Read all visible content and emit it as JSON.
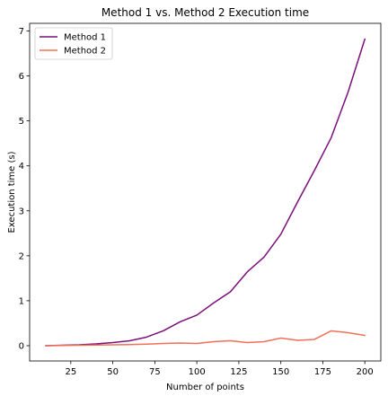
{
  "chart_data": {
    "type": "line",
    "title": "Method 1 vs. Method 2 Execution time",
    "xlabel": "Number of points",
    "ylabel": "Execution time (s)",
    "xlim": [
      0.5,
      209.5
    ],
    "ylim": [
      -0.34,
      7.17
    ],
    "xticks": [
      25,
      50,
      75,
      100,
      125,
      150,
      175,
      200
    ],
    "yticks": [
      0,
      1,
      2,
      3,
      4,
      5,
      6,
      7
    ],
    "grid": false,
    "legend_position": "top-left",
    "x": [
      10,
      20,
      30,
      40,
      50,
      60,
      70,
      80,
      90,
      100,
      110,
      120,
      130,
      140,
      150,
      160,
      170,
      180,
      190,
      200
    ],
    "series": [
      {
        "name": "Method 1",
        "color": "#7b0f7b",
        "values": [
          0.0,
          0.01,
          0.02,
          0.04,
          0.07,
          0.11,
          0.19,
          0.33,
          0.53,
          0.68,
          0.95,
          1.2,
          1.64,
          1.97,
          2.48,
          3.2,
          3.9,
          4.63,
          5.64,
          6.82
        ]
      },
      {
        "name": "Method 2",
        "color": "#f07058",
        "values": [
          0.0,
          0.005,
          0.01,
          0.015,
          0.02,
          0.025,
          0.035,
          0.05,
          0.06,
          0.05,
          0.09,
          0.11,
          0.07,
          0.09,
          0.17,
          0.12,
          0.14,
          0.33,
          0.29,
          0.23
        ]
      }
    ]
  }
}
